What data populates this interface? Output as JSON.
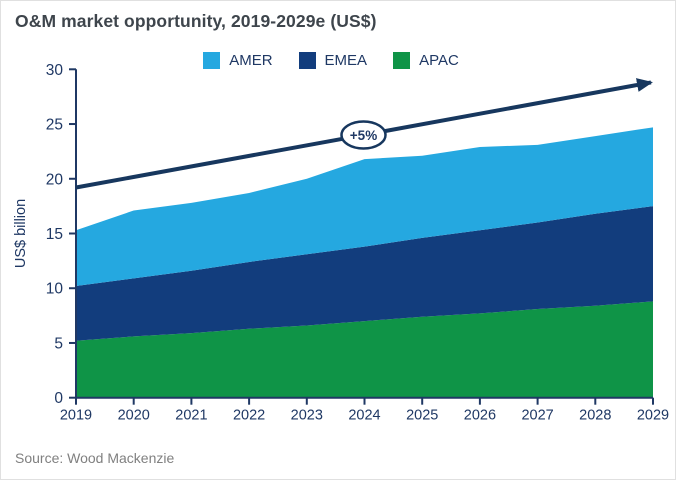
{
  "title": "O&M market opportunity, 2019-2029e (US$)",
  "source": "Source: Wood Mackenzie",
  "colors": {
    "axis_text": "#1f3864",
    "axis_line": "#1f3864",
    "trend_arrow": "#17375e",
    "title_text": "#3e454c",
    "source_text": "#808080",
    "annotation_bg": "#ffffff"
  },
  "chart_data": {
    "type": "area",
    "stacked": true,
    "title": "O&M market opportunity, 2019-2029e (US$)",
    "x": [
      2019,
      2020,
      2021,
      2022,
      2023,
      2024,
      2025,
      2026,
      2027,
      2028,
      2029
    ],
    "series": [
      {
        "name": "AMER",
        "color": "#25a8e0",
        "values": [
          5.1,
          6.2,
          6.2,
          6.3,
          6.9,
          8.0,
          7.5,
          7.6,
          7.1,
          7.1,
          7.2
        ]
      },
      {
        "name": "EMEA",
        "color": "#123d7d",
        "values": [
          5.0,
          5.3,
          5.7,
          6.1,
          6.5,
          6.8,
          7.2,
          7.6,
          7.9,
          8.4,
          8.7
        ]
      },
      {
        "name": "APAC",
        "color": "#0f9447",
        "values": [
          5.2,
          5.6,
          5.9,
          6.3,
          6.6,
          7.0,
          7.4,
          7.7,
          8.1,
          8.4,
          8.8
        ]
      }
    ],
    "stacked_totals": [
      15.3,
      17.1,
      17.8,
      18.7,
      20.0,
      21.8,
      22.1,
      22.9,
      23.1,
      23.9,
      24.7
    ],
    "stack_order_bottom_to_top": [
      "APAC",
      "EMEA",
      "AMER"
    ],
    "legend_order": [
      "AMER",
      "EMEA",
      "APAC"
    ],
    "xlabel": "",
    "ylabel": "US$ billion",
    "ylim": [
      0,
      30
    ],
    "yticks": [
      0,
      5,
      10,
      15,
      20,
      25,
      30
    ],
    "grid": false,
    "legend_position": "top-center",
    "trend_arrow": {
      "label": "+5%",
      "start_value": 19.2,
      "end_value": 28.8
    }
  }
}
